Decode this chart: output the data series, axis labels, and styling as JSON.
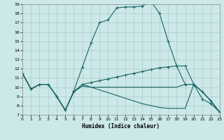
{
  "xlabel": "Humidex (Indice chaleur)",
  "background_color": "#cce8e8",
  "line_color": "#1a6464",
  "grid_color": "#aacccc",
  "xlim": [
    0,
    23
  ],
  "ylim": [
    7,
    19
  ],
  "xticks": [
    0,
    1,
    2,
    3,
    4,
    5,
    6,
    7,
    8,
    9,
    10,
    11,
    12,
    13,
    14,
    15,
    16,
    17,
    18,
    19,
    20,
    21,
    22,
    23
  ],
  "yticks": [
    7,
    8,
    9,
    10,
    11,
    12,
    13,
    14,
    15,
    16,
    17,
    18,
    19
  ],
  "lines": [
    {
      "x": [
        0,
        1,
        2,
        3,
        4,
        5,
        6,
        7,
        8,
        9,
        10,
        11,
        12,
        13,
        14,
        15,
        16,
        17,
        18,
        19,
        20,
        21,
        22,
        23
      ],
      "y": [
        11.5,
        9.8,
        10.3,
        10.3,
        9.0,
        7.5,
        9.6,
        12.2,
        14.8,
        17.0,
        17.3,
        18.6,
        18.7,
        18.7,
        18.8,
        19.3,
        18.0,
        15.0,
        12.3,
        10.3,
        10.3,
        8.7,
        8.2,
        7.3
      ],
      "marker": true
    },
    {
      "x": [
        0,
        1,
        2,
        3,
        4,
        5,
        6,
        7,
        8,
        9,
        10,
        11,
        12,
        13,
        14,
        15,
        16,
        17,
        18,
        19,
        20,
        21,
        22,
        23
      ],
      "y": [
        11.5,
        9.8,
        10.3,
        10.3,
        9.0,
        7.5,
        9.5,
        10.3,
        10.5,
        10.7,
        10.9,
        11.1,
        11.3,
        11.5,
        11.7,
        11.9,
        12.1,
        12.2,
        12.3,
        12.3,
        10.3,
        9.5,
        8.5,
        7.3
      ],
      "marker": true
    },
    {
      "x": [
        0,
        1,
        2,
        3,
        4,
        5,
        6,
        7,
        8,
        9,
        10,
        11,
        12,
        13,
        14,
        15,
        16,
        17,
        18,
        19,
        20,
        21,
        22,
        23
      ],
      "y": [
        11.5,
        9.8,
        10.3,
        10.3,
        9.0,
        7.5,
        9.5,
        10.3,
        10.0,
        9.7,
        9.4,
        9.1,
        8.8,
        8.5,
        8.2,
        8.0,
        7.8,
        7.7,
        7.7,
        7.7,
        10.3,
        9.5,
        8.5,
        7.3
      ],
      "marker": false
    },
    {
      "x": [
        0,
        1,
        2,
        3,
        4,
        5,
        6,
        7,
        8,
        9,
        10,
        11,
        12,
        13,
        14,
        15,
        16,
        17,
        18,
        19,
        20,
        21,
        22,
        23
      ],
      "y": [
        11.5,
        9.8,
        10.3,
        10.3,
        9.0,
        7.5,
        9.5,
        10.1,
        10.0,
        10.0,
        10.0,
        10.0,
        10.0,
        10.0,
        10.0,
        10.0,
        10.0,
        10.0,
        10.0,
        10.3,
        10.3,
        9.5,
        8.5,
        7.3
      ],
      "marker": false
    }
  ]
}
